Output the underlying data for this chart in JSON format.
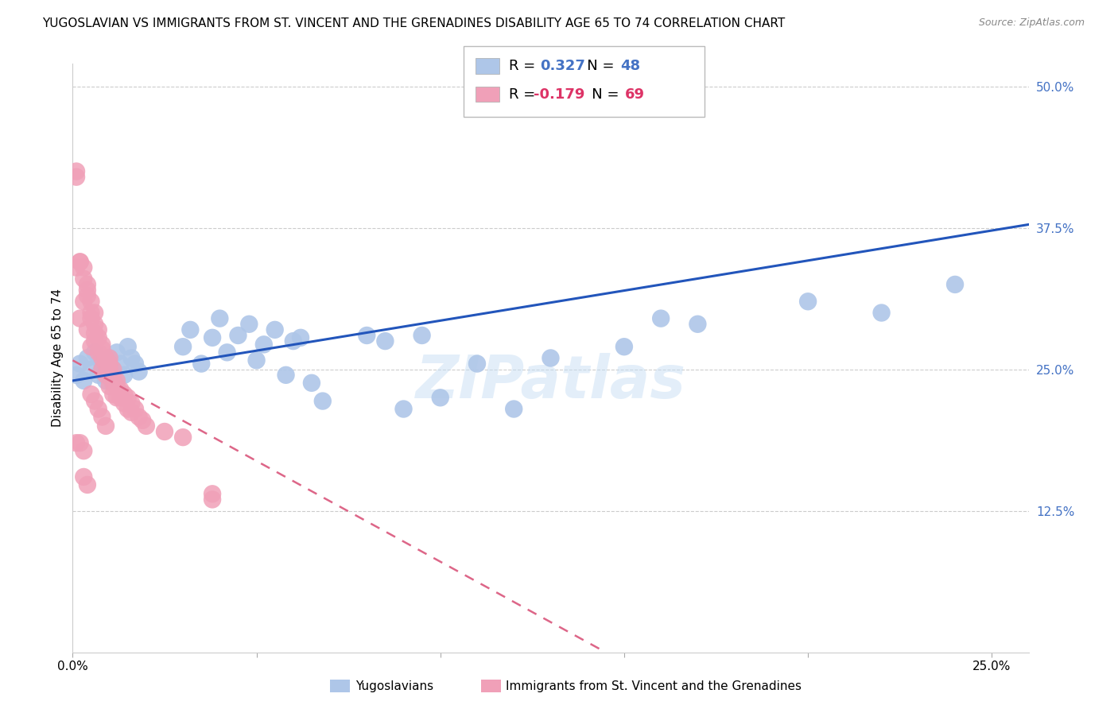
{
  "title": "YUGOSLAVIAN VS IMMIGRANTS FROM ST. VINCENT AND THE GRENADINES DISABILITY AGE 65 TO 74 CORRELATION CHART",
  "source": "Source: ZipAtlas.com",
  "ylabel": "Disability Age 65 to 74",
  "xlim": [
    0.0,
    0.26
  ],
  "ylim": [
    0.0,
    0.52
  ],
  "series_blue": {
    "name": "Yugoslavians",
    "color": "#aec6e8",
    "x": [
      0.001,
      0.002,
      0.003,
      0.004,
      0.005,
      0.006,
      0.007,
      0.008,
      0.009,
      0.01,
      0.011,
      0.012,
      0.013,
      0.014,
      0.015,
      0.016,
      0.017,
      0.018,
      0.03,
      0.032,
      0.035,
      0.038,
      0.04,
      0.042,
      0.045,
      0.048,
      0.05,
      0.052,
      0.055,
      0.058,
      0.06,
      0.062,
      0.065,
      0.068,
      0.08,
      0.085,
      0.09,
      0.095,
      0.1,
      0.11,
      0.12,
      0.13,
      0.15,
      0.16,
      0.17,
      0.2,
      0.22,
      0.24
    ],
    "y": [
      0.245,
      0.255,
      0.24,
      0.26,
      0.25,
      0.265,
      0.245,
      0.255,
      0.24,
      0.26,
      0.25,
      0.265,
      0.255,
      0.245,
      0.27,
      0.26,
      0.255,
      0.248,
      0.27,
      0.285,
      0.255,
      0.278,
      0.295,
      0.265,
      0.28,
      0.29,
      0.258,
      0.272,
      0.285,
      0.245,
      0.275,
      0.278,
      0.238,
      0.222,
      0.28,
      0.275,
      0.215,
      0.28,
      0.225,
      0.255,
      0.215,
      0.26,
      0.27,
      0.295,
      0.29,
      0.31,
      0.3,
      0.325
    ]
  },
  "series_pink": {
    "name": "Immigrants from St. Vincent and the Grenadines",
    "color": "#f0a0b8",
    "x": [
      0.001,
      0.001,
      0.001,
      0.002,
      0.002,
      0.002,
      0.003,
      0.003,
      0.003,
      0.004,
      0.004,
      0.004,
      0.004,
      0.005,
      0.005,
      0.005,
      0.005,
      0.006,
      0.006,
      0.006,
      0.006,
      0.007,
      0.007,
      0.007,
      0.008,
      0.008,
      0.008,
      0.008,
      0.009,
      0.009,
      0.009,
      0.01,
      0.01,
      0.01,
      0.01,
      0.01,
      0.011,
      0.011,
      0.011,
      0.011,
      0.012,
      0.012,
      0.012,
      0.013,
      0.013,
      0.014,
      0.014,
      0.015,
      0.015,
      0.016,
      0.016,
      0.017,
      0.018,
      0.019,
      0.02,
      0.001,
      0.002,
      0.003,
      0.025,
      0.03,
      0.038,
      0.038,
      0.005,
      0.006,
      0.007,
      0.008,
      0.009,
      0.003,
      0.004
    ],
    "y": [
      0.42,
      0.425,
      0.34,
      0.345,
      0.345,
      0.295,
      0.34,
      0.33,
      0.31,
      0.325,
      0.32,
      0.315,
      0.285,
      0.31,
      0.3,
      0.295,
      0.27,
      0.3,
      0.29,
      0.282,
      0.275,
      0.285,
      0.278,
      0.265,
      0.272,
      0.268,
      0.26,
      0.25,
      0.26,
      0.255,
      0.245,
      0.26,
      0.255,
      0.25,
      0.245,
      0.235,
      0.25,
      0.242,
      0.238,
      0.228,
      0.24,
      0.235,
      0.225,
      0.232,
      0.225,
      0.228,
      0.22,
      0.225,
      0.215,
      0.22,
      0.212,
      0.215,
      0.208,
      0.205,
      0.2,
      0.185,
      0.185,
      0.178,
      0.195,
      0.19,
      0.14,
      0.135,
      0.228,
      0.222,
      0.215,
      0.208,
      0.2,
      0.155,
      0.148
    ]
  },
  "blue_line_color": "#2255bb",
  "pink_line_color": "#dd6688",
  "watermark": "ZIPatlas",
  "background_color": "#ffffff",
  "grid_color": "#cccccc",
  "title_fontsize": 11,
  "axis_label_fontsize": 11,
  "tick_fontsize": 11,
  "legend_R1": "0.327",
  "legend_N1": "48",
  "legend_R2": "-0.179",
  "legend_N2": "69",
  "legend_color1": "#aec6e8",
  "legend_color2": "#f0a0b8",
  "legend_text_color1": "#4472c4",
  "legend_text_color2": "#dd3366"
}
